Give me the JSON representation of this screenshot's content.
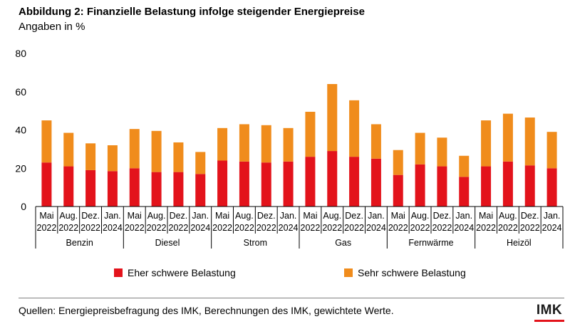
{
  "title": "Abbildung 2: Finanzielle Belastung infolge steigender Energiepreise",
  "subtitle": "Angaben in %",
  "source": "Quellen: Energiepreisbefragung des IMK, Berechnungen des IMK, gewichtete Werte.",
  "logo_text": "IMK",
  "colors": {
    "eher": "#e3131b",
    "sehr": "#f08c1c",
    "logo_accent": "#e3131b"
  },
  "chart_data": {
    "type": "bar",
    "stacked": true,
    "title": "Abbildung 2: Finanzielle Belastung infolge steigender Energiepreise",
    "subtitle": "Angaben in %",
    "ylim": [
      0,
      80
    ],
    "yticks": [
      0,
      20,
      40,
      60,
      80
    ],
    "grid": false,
    "legend_position": "bottom",
    "groups": [
      "Benzin",
      "Diesel",
      "Strom",
      "Gas",
      "Fernwärme",
      "Heizöl"
    ],
    "periods": [
      [
        "Mai",
        "2022"
      ],
      [
        "Aug.",
        "2022"
      ],
      [
        "Dez.",
        "2022"
      ],
      [
        "Jan.",
        "2024"
      ]
    ],
    "series": [
      {
        "name": "Eher schwere Belastung",
        "values": [
          23,
          21,
          19,
          18.5,
          20,
          18,
          18,
          17,
          24,
          23.5,
          23,
          23.5,
          26,
          29,
          26,
          25,
          16.5,
          22,
          21,
          15.5,
          21,
          23.5,
          21.5,
          20
        ]
      },
      {
        "name": "Sehr schwere Belastung",
        "values": [
          22,
          17.5,
          14,
          13.5,
          20.5,
          21.5,
          15.5,
          11.5,
          17,
          19.5,
          19.5,
          17.5,
          23.5,
          35,
          29.5,
          18,
          13,
          16.5,
          15,
          11,
          24,
          25,
          25,
          19
        ]
      }
    ]
  }
}
